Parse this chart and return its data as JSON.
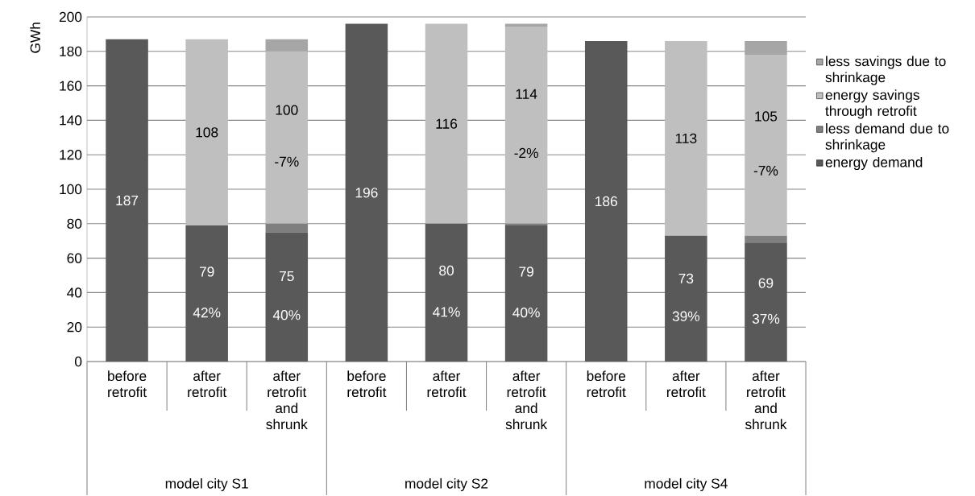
{
  "chart_data": {
    "type": "bar",
    "stacked": true,
    "ylabel": "GWh",
    "categories": [
      "before retrofit",
      "after retrofit",
      "after retrofit and shrunk",
      "before retrofit",
      "after retrofit",
      "after retrofit and shrunk",
      "before retrofit",
      "after retrofit",
      "after retrofit and shrunk"
    ],
    "series": [
      {
        "name": "energy demand",
        "color": "#595959",
        "values": [
          187,
          79,
          75,
          196,
          80,
          79,
          186,
          73,
          69
        ],
        "value_labels": [
          "187",
          "79",
          "75",
          "196",
          "80",
          "79",
          "186",
          "73",
          "69"
        ]
      },
      {
        "name": "less demand due to shrinkage",
        "color": "#7f7f7f",
        "values": [
          0,
          0,
          5,
          0,
          0,
          1,
          0,
          0,
          4
        ]
      },
      {
        "name": "energy savings through retrofit",
        "color": "#bfbfbf",
        "values": [
          0,
          108,
          100,
          0,
          116,
          114,
          0,
          113,
          105
        ],
        "value_labels": [
          null,
          "108",
          "100",
          null,
          "116",
          "114",
          null,
          "113",
          "105"
        ]
      },
      {
        "name": "less savings due to shrinkage",
        "color": "#a6a6a6",
        "values": [
          0,
          0,
          7,
          0,
          0,
          2,
          0,
          0,
          8
        ]
      }
    ],
    "ylim": [
      0,
      200
    ],
    "yticks": [
      0,
      20,
      40,
      60,
      80,
      100,
      120,
      140,
      160,
      180,
      200
    ],
    "grid": "y",
    "legend": "right",
    "annotations": [
      "model city S1",
      "model city S2",
      "model city S4",
      "42%",
      "40%",
      "-7%",
      "41%",
      "40%",
      "-2%",
      "39%",
      "37%",
      "-7%"
    ]
  }
}
